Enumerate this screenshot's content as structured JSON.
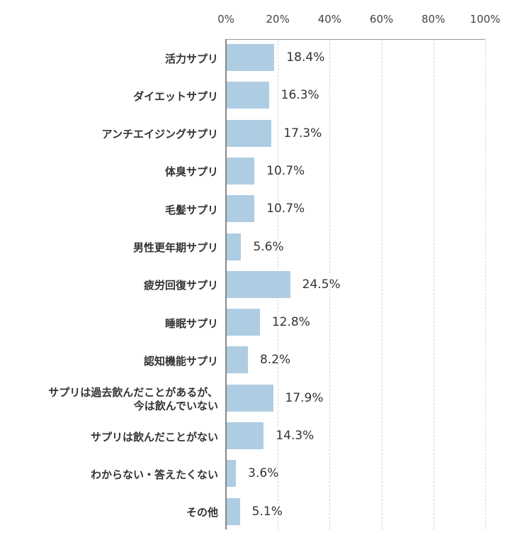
{
  "chart_data": {
    "type": "bar",
    "orientation": "horizontal",
    "title": "",
    "xlabel": "",
    "ylabel": "",
    "xlim": [
      0,
      100
    ],
    "x_ticks": [
      "0%",
      "20%",
      "40%",
      "60%",
      "80%",
      "100%"
    ],
    "grid": "vertical dashed",
    "categories": [
      "活力サプリ",
      "ダイエットサプリ",
      "アンチエイジングサプリ",
      "体臭サプリ",
      "毛髪サプリ",
      "男性更年期サプリ",
      "疲労回復サプリ",
      "睡眠サプリ",
      "認知機能サプリ",
      "サプリは過去飲んだことがあるが、\n今は飲んでいない",
      "サプリは飲んだことがない",
      "わからない・答えたくない",
      "その他"
    ],
    "values": [
      18.4,
      16.3,
      17.3,
      10.7,
      10.7,
      5.6,
      24.5,
      12.8,
      8.2,
      17.9,
      14.3,
      3.6,
      5.1
    ],
    "value_labels": [
      "18.4%",
      "16.3%",
      "17.3%",
      "10.7%",
      "10.7%",
      "5.6%",
      "24.5%",
      "12.8%",
      "8.2%",
      "17.9%",
      "14.3%",
      "3.6%",
      "5.1%"
    ],
    "bar_color": "#aecde3"
  }
}
